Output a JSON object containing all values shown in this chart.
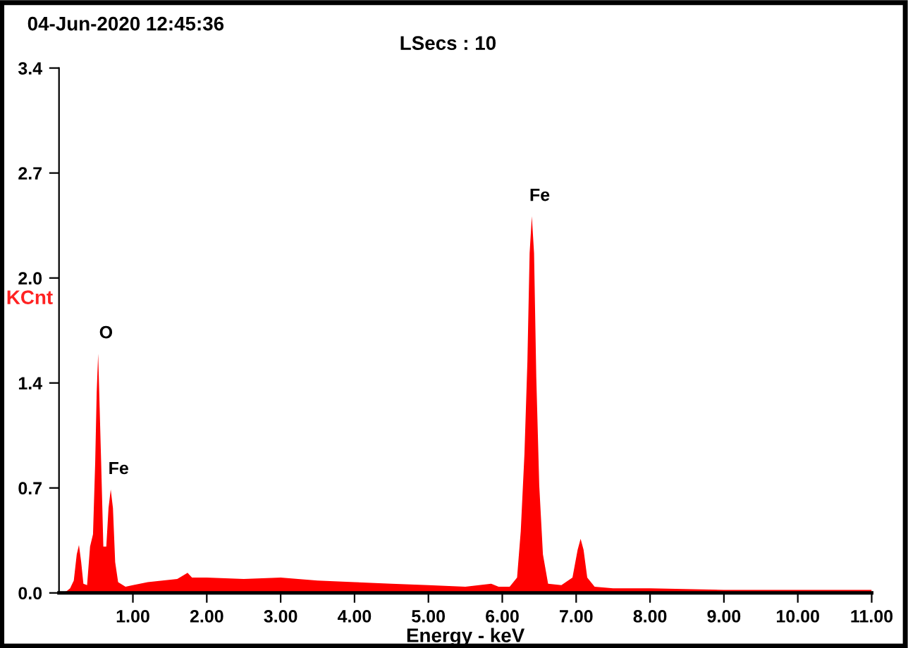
{
  "chart_data": {
    "type": "area",
    "title": "04-Jun-2020 12:45:36",
    "subtitle": "LSecs : 10",
    "xlabel": "Energy - keV",
    "ylabel": "KCnt",
    "x": [
      0.0,
      0.1,
      0.15,
      0.2,
      0.24,
      0.27,
      0.3,
      0.33,
      0.38,
      0.42,
      0.46,
      0.49,
      0.51,
      0.53,
      0.55,
      0.57,
      0.6,
      0.64,
      0.67,
      0.7,
      0.73,
      0.76,
      0.8,
      0.9,
      1.0,
      1.2,
      1.4,
      1.6,
      1.74,
      1.8,
      2.0,
      2.5,
      3.0,
      3.5,
      4.0,
      4.5,
      5.0,
      5.5,
      5.85,
      5.95,
      6.1,
      6.2,
      6.25,
      6.3,
      6.34,
      6.37,
      6.4,
      6.43,
      6.46,
      6.5,
      6.55,
      6.62,
      6.8,
      6.95,
      7.02,
      7.06,
      7.1,
      7.15,
      7.25,
      7.5,
      8.0,
      9.0,
      10.0,
      11.0
    ],
    "series": [
      {
        "color": "#ff0000",
        "values": [
          0,
          0.01,
          0.03,
          0.08,
          0.25,
          0.31,
          0.2,
          0.06,
          0.05,
          0.3,
          0.38,
          0.85,
          1.3,
          1.55,
          1.2,
          0.85,
          0.3,
          0.3,
          0.55,
          0.67,
          0.55,
          0.2,
          0.07,
          0.04,
          0.05,
          0.07,
          0.08,
          0.09,
          0.13,
          0.1,
          0.1,
          0.09,
          0.1,
          0.08,
          0.07,
          0.06,
          0.05,
          0.04,
          0.06,
          0.04,
          0.04,
          0.1,
          0.4,
          0.9,
          1.5,
          2.2,
          2.44,
          2.2,
          1.4,
          0.7,
          0.25,
          0.06,
          0.05,
          0.1,
          0.28,
          0.35,
          0.28,
          0.1,
          0.04,
          0.03,
          0.03,
          0.02,
          0.02,
          0.02
        ]
      }
    ],
    "annotations": [
      {
        "text": "O",
        "x": 0.53,
        "y": 1.55
      },
      {
        "text": "Fe",
        "x": 0.7,
        "y": 0.67
      },
      {
        "text": "Fe",
        "x": 6.4,
        "y": 2.44
      }
    ],
    "xlim": [
      0,
      11
    ],
    "xticks": [
      {
        "value": 1,
        "label": "1.00"
      },
      {
        "value": 2,
        "label": "2.00"
      },
      {
        "value": 3,
        "label": "3.00"
      },
      {
        "value": 4,
        "label": "4.00"
      },
      {
        "value": 5,
        "label": "5.00"
      },
      {
        "value": 6,
        "label": "6.00"
      },
      {
        "value": 7,
        "label": "7.00"
      },
      {
        "value": 8,
        "label": "8.00"
      },
      {
        "value": 9,
        "label": "9.00"
      },
      {
        "value": 10,
        "label": "10.00"
      },
      {
        "value": 11,
        "label": "11.00"
      }
    ],
    "ylim": [
      0,
      3.4
    ],
    "yticks": [
      {
        "value": 0,
        "label": "0.0"
      },
      {
        "value": 0.68,
        "label": "0.7"
      },
      {
        "value": 1.36,
        "label": "1.4"
      },
      {
        "value": 2.04,
        "label": "2.0"
      },
      {
        "value": 2.72,
        "label": "2.7"
      },
      {
        "value": 3.4,
        "label": "3.4"
      }
    ],
    "grid": false,
    "legend": false
  }
}
